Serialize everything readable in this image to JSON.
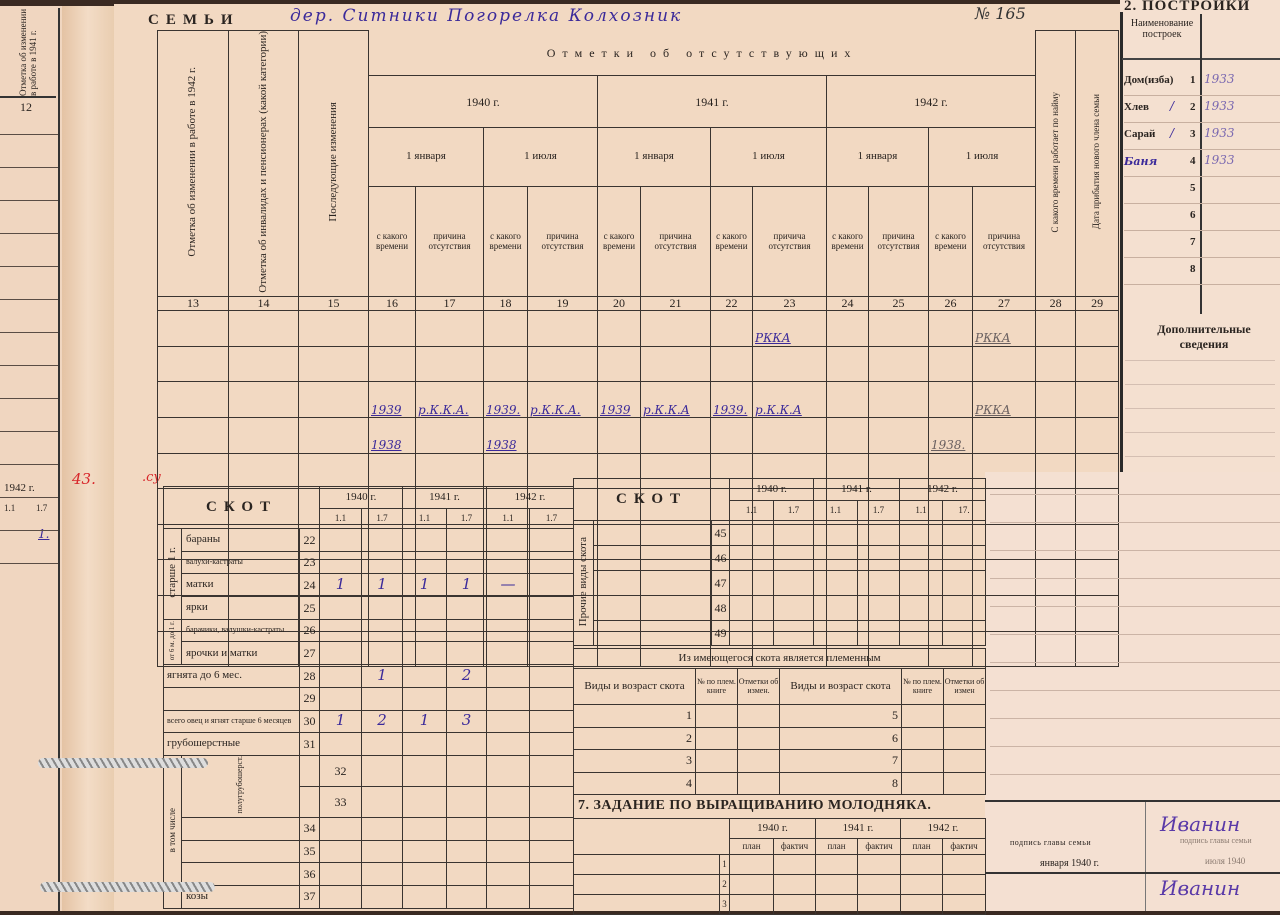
{
  "left_page": {
    "header": "Отметка об изменении в работе в 1941 г.",
    "col_num": "12",
    "year": "1942 г.",
    "dates": [
      "1.1",
      "1.7"
    ],
    "hand_values": [
      "1.",
      "1"
    ],
    "red_marks": [
      "43.",
      ".су"
    ]
  },
  "family": {
    "title": "СЕМЬИ",
    "hand_title": "дер. Ситники Погорелка Колхозник",
    "number": "№ 165"
  },
  "absent": {
    "super_header": "Отметки об отсутствующих",
    "col13": "Отметка об изменении в работе в 1942 г.",
    "col14": "Отметка об инвалидах и пенсионерах (какой категории)",
    "col15": "Последующие изменения",
    "col28": "С какого времени работает по найму",
    "col29": "Дата прибытия нового члена семьи",
    "years": [
      "1940 г.",
      "1941 г.",
      "1942 г."
    ],
    "dates": [
      "1 января",
      "1 июля",
      "1 января",
      "1 июля",
      "1 января",
      "1 июля"
    ],
    "sub_since": "с какого времени",
    "sub_reason": [
      "причина отсутствия",
      "причина отсутствия",
      "причина отсутствия",
      "причича отсутствия",
      "причина отсутствия",
      "причина отсутствия"
    ],
    "col_numbers": [
      "13",
      "14",
      "15",
      "16",
      "17",
      "18",
      "19",
      "20",
      "21",
      "22",
      "23",
      "24",
      "25",
      "26",
      "27",
      "28",
      "29"
    ],
    "rows": [
      [
        "",
        "",
        "",
        "",
        "",
        "",
        "",
        "",
        "",
        "",
        "РККА",
        "",
        "",
        "",
        "РККА",
        "",
        ""
      ],
      [
        "",
        "",
        "",
        "",
        "",
        "",
        "",
        "",
        "",
        "",
        "",
        "",
        "",
        "",
        "",
        "",
        ""
      ],
      [
        "",
        "",
        "",
        "1939",
        "р.К.К.А.",
        "1939.",
        "р.К.К.А.",
        "1939",
        "р.К.К.А",
        "1939.",
        "р.К.К.А",
        "",
        "",
        "",
        "РККА",
        "",
        ""
      ],
      [
        "",
        "",
        "",
        "1938",
        "",
        "1938",
        "",
        "",
        "",
        "",
        "",
        "",
        "",
        "1938.",
        "",
        "",
        ""
      ],
      [
        "",
        "",
        "",
        "",
        "",
        "",
        "",
        "",
        "",
        "",
        "",
        "",
        "",
        "",
        "",
        "",
        ""
      ],
      [
        "",
        "",
        "",
        "",
        "",
        "",
        "",
        "",
        "",
        "",
        "",
        "",
        "",
        "",
        "",
        "",
        ""
      ],
      [
        "",
        "",
        "",
        "",
        "",
        "",
        "",
        "",
        "",
        "",
        "",
        "",
        "",
        "",
        "",
        "",
        ""
      ],
      [
        "",
        "",
        "",
        "",
        "",
        "",
        "",
        "",
        "",
        "",
        "",
        "",
        "",
        "",
        "",
        "",
        ""
      ],
      [
        "",
        "",
        "",
        "",
        "",
        "",
        "",
        "",
        "",
        "",
        "",
        "",
        "",
        "",
        "",
        "",
        ""
      ],
      [
        "",
        "",
        "",
        "",
        "",
        "",
        "",
        "",
        "",
        "",
        "",
        "",
        "",
        "",
        "",
        "",
        ""
      ]
    ]
  },
  "buildings": {
    "title": "2. ПОСТРОЙКИ",
    "col_header": "Наименование построек",
    "items": [
      {
        "name": "Дом(изба)",
        "n": "1",
        "mark": "",
        "value": "1933"
      },
      {
        "name": "Хлев",
        "n": "2",
        "mark": "/",
        "value": "1933"
      },
      {
        "name": "Сарай",
        "n": "3",
        "mark": "/",
        "value": "1933"
      },
      {
        "name": "Баня",
        "n": "4",
        "mark": "",
        "value": "1933"
      },
      {
        "name": "",
        "n": "5",
        "mark": "",
        "value": ""
      },
      {
        "name": "",
        "n": "6",
        "mark": "",
        "value": ""
      },
      {
        "name": "",
        "n": "7",
        "mark": "",
        "value": ""
      },
      {
        "name": "",
        "n": "8",
        "mark": "",
        "value": ""
      }
    ],
    "extra": "Дополнительные сведения"
  },
  "livestock": {
    "title": "СКОТ",
    "years": [
      "1940 г.",
      "1941 г.",
      "1942 г."
    ],
    "dates": [
      "1.1",
      "1.7",
      "1.1",
      "1.7",
      "1.1",
      "1.7"
    ],
    "groups": {
      "older": "старше 1 г.",
      "young": "от 6 м. до 1 г.",
      "incl": "в том числе",
      "semi": "полугрубошерст."
    },
    "rows": [
      {
        "label": "бараны",
        "n": "22",
        "v": [
          "",
          "",
          "",
          "",
          "",
          ""
        ]
      },
      {
        "label": "валухи-кастраты",
        "n": "23",
        "v": [
          "",
          "",
          "",
          "",
          "",
          ""
        ]
      },
      {
        "label": "матки",
        "n": "24",
        "v": [
          "1",
          "1",
          "1",
          "1",
          "—",
          ""
        ]
      },
      {
        "label": "ярки",
        "n": "25",
        "v": [
          "",
          "",
          "",
          "",
          "",
          ""
        ]
      },
      {
        "label": "барачики, валушки-кастраты",
        "n": "26",
        "v": [
          "",
          "",
          "",
          "",
          "",
          ""
        ]
      },
      {
        "label": "ярочки и матки",
        "n": "27",
        "v": [
          "",
          "",
          "",
          "",
          "",
          ""
        ]
      },
      {
        "label": "ягнята до 6 мес.",
        "n": "28",
        "v": [
          "",
          "1",
          "",
          "2",
          "",
          ""
        ]
      },
      {
        "label": "",
        "n": "29",
        "v": [
          "",
          "",
          "",
          "",
          "",
          ""
        ]
      },
      {
        "label": "всего овец и ягнят старше 6 месяцев",
        "n": "30",
        "v": [
          "1",
          "2",
          "1",
          "3",
          "",
          ""
        ]
      },
      {
        "label": "грубошерстные",
        "n": "31",
        "v": [
          "",
          "",
          "",
          "",
          "",
          ""
        ]
      },
      {
        "label": "",
        "n": "32",
        "v": [
          "",
          "",
          "",
          "",
          "",
          ""
        ]
      },
      {
        "label": "",
        "n": "33",
        "v": [
          "",
          "",
          "",
          "",
          "",
          ""
        ]
      },
      {
        "label": "",
        "n": "34",
        "v": [
          "",
          "",
          "",
          "",
          "",
          ""
        ]
      },
      {
        "label": "",
        "n": "35",
        "v": [
          "",
          "",
          "",
          "",
          "",
          ""
        ]
      },
      {
        "label": "",
        "n": "36",
        "v": [
          "",
          "",
          "",
          "",
          "",
          ""
        ]
      },
      {
        "label": "козы",
        "n": "37",
        "v": [
          "",
          "",
          "",
          "",
          "",
          ""
        ]
      }
    ]
  },
  "livestock2": {
    "title": "СКОТ",
    "years": [
      "1940 г.",
      "1941 г.",
      "1942 г."
    ],
    "dates": [
      "1.1",
      "1.7",
      "1.1",
      "1.7",
      "1.1",
      "17."
    ],
    "side": "Прочие виды скота",
    "rows": [
      "45",
      "46",
      "47",
      "48",
      "49"
    ]
  },
  "breeding": {
    "title": "Из имеющегося скота является племенным",
    "headers": [
      "Виды и возраст скота",
      "№ по плем. книге",
      "Отметки об измен.",
      "Виды и возраст скота",
      "№ по плем. книге",
      "Отметки об измен"
    ],
    "left_nums": [
      "1",
      "2",
      "3",
      "4"
    ],
    "right_nums": [
      "5",
      "6",
      "7",
      "8"
    ]
  },
  "young": {
    "title": "7. ЗАДАНИЕ ПО ВЫРАЩИВАНИЮ МОЛОДНЯКА.",
    "years": [
      "1940 г.",
      "1941 г.",
      "1942 г."
    ],
    "sub": [
      "план",
      "фактич",
      "план",
      "фактич",
      "план",
      "фактич"
    ],
    "rows": [
      "1",
      "2",
      "3"
    ]
  },
  "signature": {
    "label": "подпись главы семьи",
    "date": "января 1940 г.",
    "sign1": "Иванин",
    "sign2": "Иванин",
    "label2": "подпись главы семьи",
    "date2": "июля 1940"
  }
}
